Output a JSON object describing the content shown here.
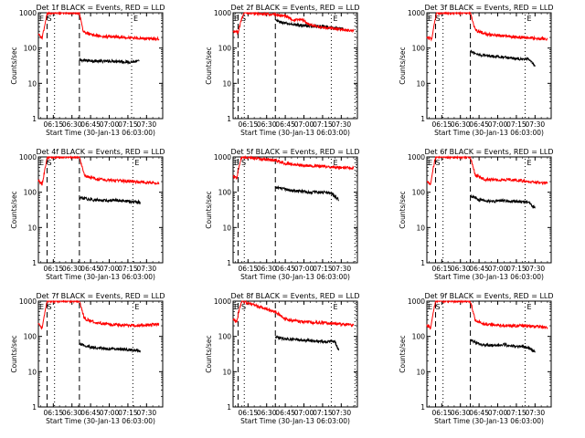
{
  "figure": {
    "panel_labels": [
      "E",
      "S",
      "E"
    ],
    "colors": {
      "events": "#000000",
      "lld": "#ff0000",
      "axis": "#000000"
    }
  },
  "chart_data": [
    {
      "type": "line",
      "title": "Det 1f BLACK = Events, RED = LLD",
      "xlabel": "Start Time (30-Jan-13 06:03:00)",
      "ylabel": "Counts/sec",
      "log_y": true,
      "ylim": [
        1,
        1000
      ],
      "yticks": [
        "1",
        "10",
        "100",
        "1000"
      ],
      "xlim": [
        "06:03",
        "07:43"
      ],
      "xticks": [
        "06:15",
        "06:30",
        "06:45",
        "07:00",
        "07:15",
        "07:30"
      ],
      "grid": false,
      "vlines": [
        {
          "x": "06:10",
          "style": "dashed"
        },
        {
          "x": "06:16",
          "style": "dotted"
        },
        {
          "x": "06:36",
          "style": "dashed"
        },
        {
          "x": "07:18",
          "style": "dotted"
        }
      ],
      "series": [
        {
          "name": "Events",
          "color": "#000000",
          "x": [
            "06:36",
            "06:45",
            "06:55",
            "07:05",
            "07:15",
            "07:24"
          ],
          "values": [
            45,
            44,
            42,
            43,
            40,
            42
          ]
        },
        {
          "name": "LLD",
          "color": "#ff0000",
          "x": [
            "06:03",
            "06:06",
            "06:08",
            "06:10",
            "06:11",
            "06:36",
            "06:39",
            "06:45",
            "06:55",
            "07:05",
            "07:15",
            "07:25",
            "07:40"
          ],
          "values": [
            250,
            190,
            420,
            1000,
            1000,
            1000,
            300,
            240,
            210,
            210,
            200,
            190,
            180
          ]
        }
      ]
    },
    {
      "type": "line",
      "title": "Det 2f BLACK = Events, RED = LLD",
      "xlabel": "Start Time (30-Jan-13 06:03:00)",
      "ylabel": "Counts/sec",
      "log_y": true,
      "ylim": [
        1,
        1000
      ],
      "yticks": [
        "1",
        "10",
        "100",
        "1000"
      ],
      "xlim": [
        "06:03",
        "07:43"
      ],
      "xticks": [
        "06:15",
        "06:30",
        "06:45",
        "07:00",
        "07:15",
        "07:30"
      ],
      "grid": false,
      "vlines": [
        {
          "x": "06:07",
          "style": "dashed"
        },
        {
          "x": "06:12",
          "style": "dotted"
        },
        {
          "x": "06:37",
          "style": "dashed"
        },
        {
          "x": "07:22",
          "style": "dotted"
        },
        {
          "x": "07:41",
          "style": "dotted"
        }
      ],
      "series": [
        {
          "name": "Events",
          "color": "#000000",
          "x": [
            "06:37",
            "06:45",
            "06:55",
            "07:05",
            "07:15",
            "07:25",
            "07:32"
          ],
          "values": [
            600,
            500,
            450,
            420,
            400,
            370,
            350
          ]
        },
        {
          "name": "LLD",
          "color": "#ff0000",
          "x": [
            "06:03",
            "06:07",
            "06:10",
            "06:12",
            "06:37",
            "06:45",
            "06:52",
            "06:58",
            "07:05",
            "07:15",
            "07:25",
            "07:40"
          ],
          "values": [
            300,
            280,
            700,
            1000,
            900,
            800,
            600,
            650,
            450,
            380,
            350,
            300
          ]
        }
      ]
    },
    {
      "type": "line",
      "title": "Det 3f BLACK = Events, RED = LLD",
      "xlabel": "Start Time (30-Jan-13 06:03:00)",
      "ylabel": "Counts/sec",
      "log_y": true,
      "ylim": [
        1,
        1000
      ],
      "yticks": [
        "1",
        "10",
        "100",
        "1000"
      ],
      "xlim": [
        "06:03",
        "07:43"
      ],
      "xticks": [
        "06:15",
        "06:30",
        "06:45",
        "07:00",
        "07:15",
        "07:30"
      ],
      "grid": false,
      "vlines": [
        {
          "x": "06:10",
          "style": "dashed"
        },
        {
          "x": "06:16",
          "style": "dotted"
        },
        {
          "x": "06:38",
          "style": "dashed"
        },
        {
          "x": "07:22",
          "style": "dotted"
        }
      ],
      "series": [
        {
          "name": "Events",
          "color": "#000000",
          "x": [
            "06:38",
            "06:45",
            "06:55",
            "07:05",
            "07:15",
            "07:25",
            "07:30"
          ],
          "values": [
            80,
            65,
            60,
            55,
            50,
            48,
            30
          ]
        },
        {
          "name": "LLD",
          "color": "#ff0000",
          "x": [
            "06:03",
            "06:07",
            "06:09",
            "06:11",
            "06:38",
            "06:42",
            "06:50",
            "07:00",
            "07:10",
            "07:20",
            "07:30",
            "07:40"
          ],
          "values": [
            200,
            180,
            500,
            1000,
            1000,
            320,
            250,
            230,
            210,
            200,
            190,
            180
          ]
        }
      ]
    },
    {
      "type": "line",
      "title": "Det 4f BLACK = Events, RED = LLD",
      "xlabel": "Start Time (30-Jan-13 06:03:00)",
      "ylabel": "Counts/sec",
      "log_y": true,
      "ylim": [
        1,
        1000
      ],
      "yticks": [
        "1",
        "10",
        "100",
        "1000"
      ],
      "xlim": [
        "06:03",
        "07:43"
      ],
      "xticks": [
        "06:15",
        "06:30",
        "06:45",
        "07:00",
        "07:15",
        "07:30"
      ],
      "grid": false,
      "vlines": [
        {
          "x": "06:10",
          "style": "dashed"
        },
        {
          "x": "06:16",
          "style": "dotted"
        },
        {
          "x": "06:36",
          "style": "dashed"
        },
        {
          "x": "07:19",
          "style": "dotted"
        }
      ],
      "series": [
        {
          "name": "Events",
          "color": "#000000",
          "x": [
            "06:36",
            "06:45",
            "06:55",
            "07:05",
            "07:15",
            "07:25"
          ],
          "values": [
            70,
            62,
            58,
            60,
            55,
            52
          ]
        },
        {
          "name": "LLD",
          "color": "#ff0000",
          "x": [
            "06:03",
            "06:06",
            "06:08",
            "06:10",
            "06:36",
            "06:40",
            "06:50",
            "07:00",
            "07:10",
            "07:20",
            "07:30",
            "07:40"
          ],
          "values": [
            220,
            170,
            400,
            1000,
            1000,
            300,
            230,
            220,
            210,
            200,
            190,
            180
          ]
        }
      ]
    },
    {
      "type": "line",
      "title": "Det 5f BLACK = Events, RED = LLD",
      "xlabel": "Start Time (30-Jan-13 06:03:00)",
      "ylabel": "Counts/sec",
      "log_y": true,
      "ylim": [
        1,
        1000
      ],
      "yticks": [
        "1",
        "10",
        "100",
        "1000"
      ],
      "xlim": [
        "06:03",
        "07:43"
      ],
      "xticks": [
        "06:15",
        "06:30",
        "06:45",
        "07:00",
        "07:15",
        "07:30"
      ],
      "grid": false,
      "vlines": [
        {
          "x": "06:07",
          "style": "dashed"
        },
        {
          "x": "06:12",
          "style": "dotted"
        },
        {
          "x": "06:37",
          "style": "dashed"
        },
        {
          "x": "07:22",
          "style": "dotted"
        },
        {
          "x": "07:41",
          "style": "dotted"
        }
      ],
      "series": [
        {
          "name": "Events",
          "color": "#000000",
          "x": [
            "06:37",
            "06:45",
            "06:55",
            "07:05",
            "07:15",
            "07:22",
            "07:28"
          ],
          "values": [
            140,
            120,
            110,
            100,
            100,
            95,
            60
          ]
        },
        {
          "name": "LLD",
          "color": "#ff0000",
          "x": [
            "06:03",
            "06:06",
            "06:08",
            "06:10",
            "06:37",
            "06:45",
            "06:55",
            "07:05",
            "07:15",
            "07:25",
            "07:40"
          ],
          "values": [
            280,
            250,
            600,
            1000,
            800,
            650,
            600,
            560,
            540,
            520,
            480
          ]
        }
      ]
    },
    {
      "type": "line",
      "title": "Det 6f BLACK = Events, RED = LLD",
      "xlabel": "Start Time (30-Jan-13 06:03:00)",
      "ylabel": "Counts/sec",
      "log_y": true,
      "ylim": [
        1,
        1000
      ],
      "yticks": [
        "1",
        "10",
        "100",
        "1000"
      ],
      "xlim": [
        "06:03",
        "07:43"
      ],
      "xticks": [
        "06:15",
        "06:30",
        "06:45",
        "07:00",
        "07:15",
        "07:30"
      ],
      "grid": false,
      "vlines": [
        {
          "x": "06:10",
          "style": "dashed"
        },
        {
          "x": "06:16",
          "style": "dotted"
        },
        {
          "x": "06:38",
          "style": "dashed"
        },
        {
          "x": "07:22",
          "style": "dotted"
        }
      ],
      "series": [
        {
          "name": "Events",
          "color": "#000000",
          "x": [
            "06:38",
            "06:45",
            "06:55",
            "07:05",
            "07:15",
            "07:25",
            "07:30"
          ],
          "values": [
            80,
            60,
            55,
            58,
            55,
            52,
            35
          ]
        },
        {
          "name": "LLD",
          "color": "#ff0000",
          "x": [
            "06:03",
            "06:06",
            "06:08",
            "06:10",
            "06:38",
            "06:42",
            "06:50",
            "07:00",
            "07:10",
            "07:20",
            "07:30",
            "07:40"
          ],
          "values": [
            200,
            170,
            450,
            1000,
            1000,
            300,
            230,
            220,
            230,
            210,
            190,
            180
          ]
        }
      ]
    },
    {
      "type": "line",
      "title": "Det 7f BLACK = Events, RED = LLD",
      "xlabel": "Start Time (30-Jan-13 06:03:00)",
      "ylabel": "Counts/sec",
      "log_y": true,
      "ylim": [
        1,
        1000
      ],
      "yticks": [
        "1",
        "10",
        "100",
        "1000"
      ],
      "xlim": [
        "06:03",
        "07:43"
      ],
      "xticks": [
        "06:15",
        "06:30",
        "06:45",
        "07:00",
        "07:15",
        "07:30"
      ],
      "grid": false,
      "vlines": [
        {
          "x": "06:10",
          "style": "dashed"
        },
        {
          "x": "06:16",
          "style": "dotted"
        },
        {
          "x": "06:36",
          "style": "dashed"
        },
        {
          "x": "07:19",
          "style": "dotted"
        }
      ],
      "series": [
        {
          "name": "Events",
          "color": "#000000",
          "x": [
            "06:36",
            "06:45",
            "06:55",
            "07:05",
            "07:15",
            "07:25"
          ],
          "values": [
            60,
            50,
            45,
            45,
            42,
            40
          ]
        },
        {
          "name": "LLD",
          "color": "#ff0000",
          "x": [
            "06:03",
            "06:06",
            "06:08",
            "06:10",
            "06:36",
            "06:40",
            "06:50",
            "07:00",
            "07:10",
            "07:20",
            "07:30",
            "07:40"
          ],
          "values": [
            230,
            170,
            450,
            1000,
            1000,
            320,
            240,
            220,
            210,
            200,
            210,
            220
          ]
        }
      ]
    },
    {
      "type": "line",
      "title": "Det 8f BLACK = Events, RED = LLD",
      "xlabel": "Start Time (30-Jan-13 06:03:00)",
      "ylabel": "Counts/sec",
      "log_y": true,
      "ylim": [
        1,
        1000
      ],
      "yticks": [
        "1",
        "10",
        "100",
        "1000"
      ],
      "xlim": [
        "06:03",
        "07:43"
      ],
      "xticks": [
        "06:15",
        "06:30",
        "06:45",
        "07:00",
        "07:15",
        "07:30"
      ],
      "grid": false,
      "vlines": [
        {
          "x": "06:07",
          "style": "dashed"
        },
        {
          "x": "06:12",
          "style": "dotted"
        },
        {
          "x": "06:37",
          "style": "dashed"
        },
        {
          "x": "07:22",
          "style": "dotted"
        },
        {
          "x": "07:41",
          "style": "dotted"
        }
      ],
      "series": [
        {
          "name": "Events",
          "color": "#000000",
          "x": [
            "06:37",
            "06:45",
            "06:55",
            "07:05",
            "07:15",
            "07:25",
            "07:28"
          ],
          "values": [
            95,
            85,
            80,
            75,
            72,
            70,
            40
          ]
        },
        {
          "name": "LLD",
          "color": "#ff0000",
          "x": [
            "06:03",
            "06:06",
            "06:08",
            "06:10",
            "06:37",
            "06:45",
            "06:55",
            "07:05",
            "07:15",
            "07:25",
            "07:40"
          ],
          "values": [
            300,
            260,
            600,
            1000,
            500,
            310,
            270,
            250,
            240,
            230,
            210
          ]
        }
      ]
    },
    {
      "type": "line",
      "title": "Det 9f BLACK = Events, RED = LLD",
      "xlabel": "Start Time (30-Jan-13 06:03:00)",
      "ylabel": "Counts/sec",
      "log_y": true,
      "ylim": [
        1,
        1000
      ],
      "yticks": [
        "1",
        "10",
        "100",
        "1000"
      ],
      "xlim": [
        "06:03",
        "07:43"
      ],
      "xticks": [
        "06:15",
        "06:30",
        "06:45",
        "07:00",
        "07:15",
        "07:30"
      ],
      "grid": false,
      "vlines": [
        {
          "x": "06:10",
          "style": "dashed"
        },
        {
          "x": "06:16",
          "style": "dotted"
        },
        {
          "x": "06:38",
          "style": "dashed"
        },
        {
          "x": "07:22",
          "style": "dotted"
        }
      ],
      "series": [
        {
          "name": "Events",
          "color": "#000000",
          "x": [
            "06:38",
            "06:45",
            "06:55",
            "07:05",
            "07:15",
            "07:25",
            "07:30"
          ],
          "values": [
            80,
            60,
            55,
            58,
            52,
            50,
            35
          ]
        },
        {
          "name": "LLD",
          "color": "#ff0000",
          "x": [
            "06:03",
            "06:06",
            "06:08",
            "06:10",
            "06:38",
            "06:42",
            "06:50",
            "07:00",
            "07:10",
            "07:20",
            "07:30",
            "07:40"
          ],
          "values": [
            210,
            170,
            450,
            1000,
            1000,
            280,
            220,
            210,
            200,
            200,
            190,
            180
          ]
        }
      ]
    }
  ]
}
